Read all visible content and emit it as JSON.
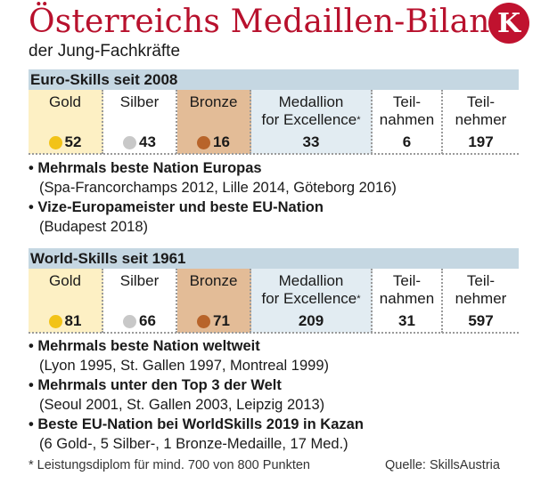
{
  "header": {
    "title": "Österreichs Medaillen-Bilanz",
    "subtitle": "der Jung-Fachkräfte",
    "logo_letter": "K",
    "brand_color": "#c0122f"
  },
  "columns": {
    "gold": "Gold",
    "silver": "Silber",
    "bronze": "Bronze",
    "excellence_1": "Medallion",
    "excellence_2": "for Excellence",
    "excellence_star": "*",
    "participations_1": "Teil-",
    "participations_2": "nahmen",
    "participants_1": "Teil-",
    "participants_2": "nehmer"
  },
  "euro": {
    "heading": "Euro-Skills seit 2008",
    "gold": "52",
    "silver": "43",
    "bronze": "16",
    "excellence": "33",
    "participations": "6",
    "participants": "197",
    "notes": [
      {
        "bold": "• Mehrmals beste Nation Europas",
        "detail": "(Spa-Francorchamps 2012, Lille 2014, Göteborg 2016)"
      },
      {
        "bold": "• Vize-Europameister und beste EU-Nation",
        "detail": "(Budapest 2018)"
      }
    ]
  },
  "world": {
    "heading": "World-Skills seit 1961",
    "gold": "81",
    "silver": "66",
    "bronze": "71",
    "excellence": "209",
    "participations": "31",
    "participants": "597",
    "notes": [
      {
        "bold": "• Mehrmals beste Nation weltweit",
        "detail": "(Lyon 1995, St. Gallen 1997, Montreal 1999)"
      },
      {
        "bold": "• Mehrmals unter den Top 3 der Welt",
        "detail": "(Seoul 2001, St. Gallen 2003, Leipzig 2013)"
      },
      {
        "bold": "• Beste EU-Nation bei WorldSkills 2019 in Kazan",
        "detail": "(6 Gold-, 5 Silber-, 1 Bronze-Medaille, 17 Med.)"
      }
    ]
  },
  "footer": {
    "footnote": "* Leistungsdiplom für mind. 700 von 800 Punkten",
    "source": "Quelle: SkillsAustria"
  },
  "colors": {
    "header_bar": "#c5d7e2",
    "gold_bg": "#fdf0c4",
    "bronze_bg": "#e3bc97",
    "excellence_bg": "#e2ecf2",
    "gold_dot": "#f2c318",
    "silver_dot": "#c8c8c8",
    "bronze_dot": "#b8642a"
  }
}
